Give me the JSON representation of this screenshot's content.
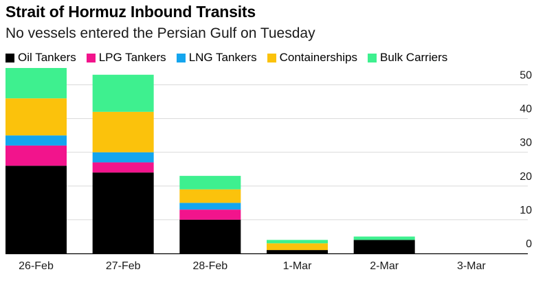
{
  "title": "Strait of Hormuz Inbound Transits",
  "subtitle": "No vessels entered the Persian Gulf on Tuesday",
  "legend": [
    {
      "label": "Oil Tankers",
      "color": "#000000"
    },
    {
      "label": "LPG Tankers",
      "color": "#f2148c"
    },
    {
      "label": "LNG Tankers",
      "color": "#14a5ee"
    },
    {
      "label": "Containerships",
      "color": "#fbc20c"
    },
    {
      "label": "Bulk Carriers",
      "color": "#3ef08f"
    }
  ],
  "chart_data": {
    "type": "bar",
    "stacked": true,
    "title": "Strait of Hormuz Inbound Transits",
    "subtitle": "No vessels entered the Persian Gulf on Tuesday",
    "categories": [
      "26-Feb",
      "27-Feb",
      "28-Feb",
      "1-Mar",
      "2-Mar",
      "3-Mar"
    ],
    "series": [
      {
        "name": "Oil Tankers",
        "color": "#000000",
        "values": [
          26,
          24,
          10,
          1,
          4,
          0
        ]
      },
      {
        "name": "LPG Tankers",
        "color": "#f2148c",
        "values": [
          6,
          3,
          3,
          0,
          0,
          0
        ]
      },
      {
        "name": "LNG Tankers",
        "color": "#14a5ee",
        "values": [
          3,
          3,
          2,
          0,
          0,
          0
        ]
      },
      {
        "name": "Containerships",
        "color": "#fbc20c",
        "values": [
          11,
          12,
          4,
          2,
          0,
          0
        ]
      },
      {
        "name": "Bulk Carriers",
        "color": "#3ef08f",
        "values": [
          9,
          11,
          4,
          1,
          1,
          0
        ]
      }
    ],
    "yticks": [
      0,
      10,
      20,
      30,
      40,
      50
    ],
    "ylim": [
      0,
      55
    ],
    "yaxis_position": "right",
    "grid": true
  }
}
